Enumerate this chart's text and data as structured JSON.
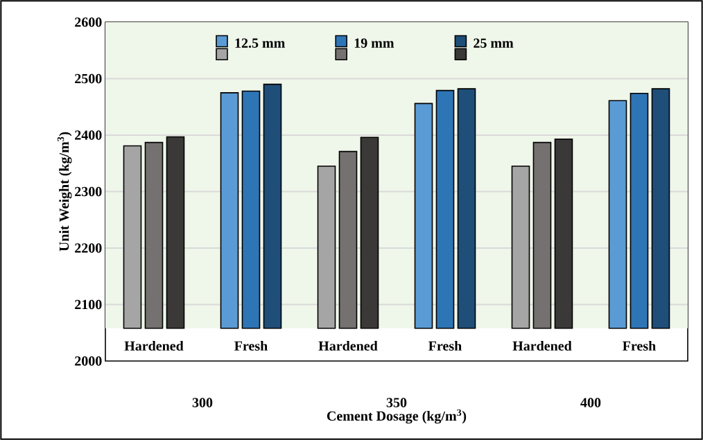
{
  "chart_data": {
    "type": "bar",
    "xlabel": "Cement Dosage (kg/m$^{3}$)",
    "ylabel": "Unit Weight (kg/m$^{3}$)",
    "categories": [
      "Hardened",
      "Fresh",
      "Hardened",
      "Fresh",
      "Hardened",
      "Fresh"
    ],
    "series": [
      {
        "name": "12.5 mm",
        "colors": [
          "#a5a5a5",
          "#5b9bd5",
          "#a5a5a5",
          "#5b9bd5",
          "#a5a5a5",
          "#5b9bd5"
        ],
        "base": [
          2058,
          2058,
          2058,
          2058,
          2058,
          2058
        ],
        "values": [
          323,
          417,
          287,
          398,
          287,
          403
        ]
      },
      {
        "name": "19 mm",
        "colors": [
          "#767171",
          "#2e75b6",
          "#767171",
          "#2e75b6",
          "#767171",
          "#2e75b6"
        ],
        "base": [
          2058,
          2058,
          2058,
          2058,
          2058,
          2058
        ],
        "values": [
          329,
          420,
          313,
          421,
          329,
          416
        ]
      },
      {
        "name": "25 mm",
        "colors": [
          "#3b3838",
          "#1f4e79",
          "#3b3838",
          "#1f4e79",
          "#3b3838",
          "#1f4e79"
        ],
        "base": [
          2058,
          2058,
          2058,
          2058,
          2058,
          2058
        ],
        "values": [
          339,
          432,
          338,
          424,
          335,
          424
        ]
      }
    ],
    "ylim": [
      2000,
      2600
    ],
    "yticks": [
      2000,
      2100,
      2200,
      2300,
      2400,
      2500,
      2600
    ],
    "bands": [
      {
        "axis": "y",
        "from": 2058,
        "to": 2600,
        "color": "#eff6ea"
      }
    ],
    "annotations": [
      "300",
      "350",
      "400"
    ],
    "grid": "y",
    "legend": "top"
  }
}
